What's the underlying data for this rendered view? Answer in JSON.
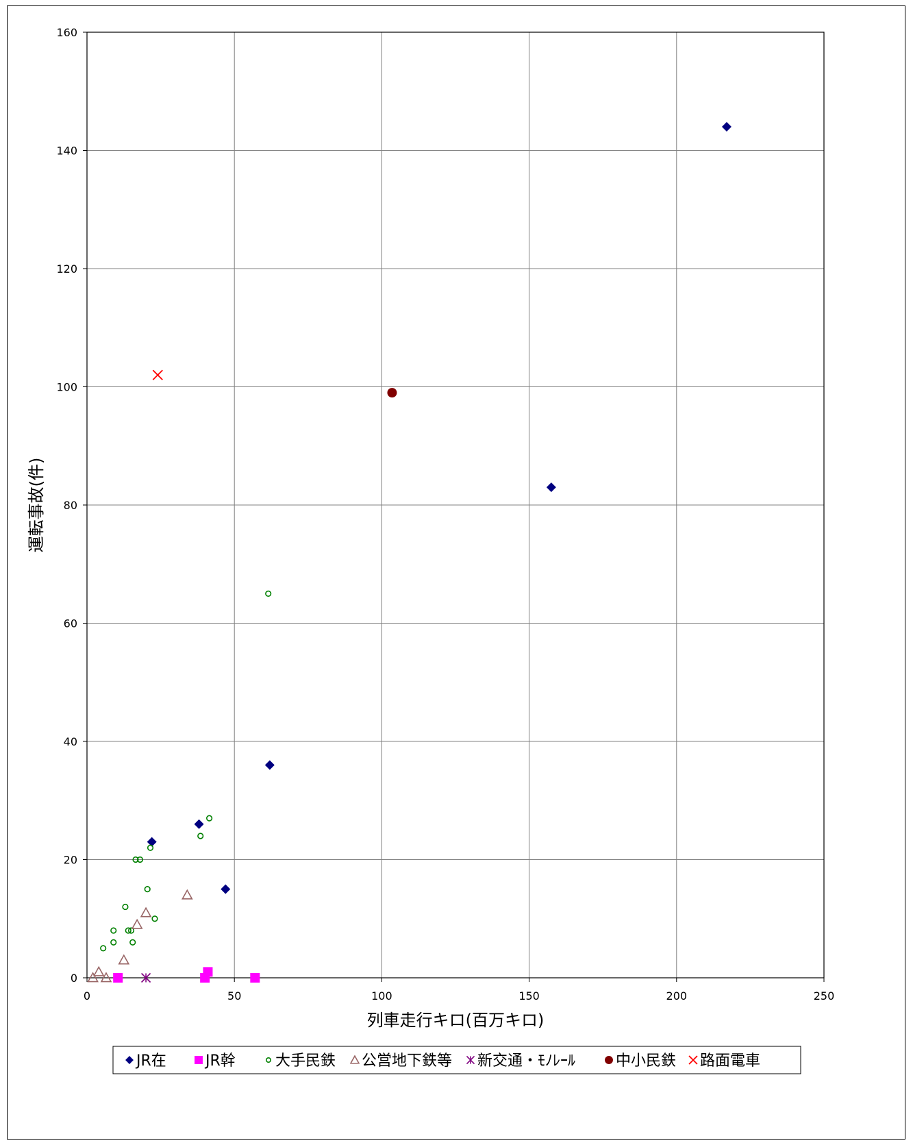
{
  "chart_data": {
    "type": "scatter",
    "title": "",
    "xlabel": "列車走行キロ(百万キロ)",
    "ylabel": "運転事故(件)",
    "xlim": [
      0,
      250
    ],
    "ylim": [
      0,
      160
    ],
    "xticks": [
      0,
      50,
      100,
      150,
      200,
      250
    ],
    "yticks": [
      0,
      20,
      40,
      60,
      80,
      100,
      120,
      140,
      160
    ],
    "grid": true,
    "legend_position": "bottom",
    "series": [
      {
        "name": "JR在",
        "marker": "diamond",
        "color": "#000080",
        "points": [
          [
            217,
            144
          ],
          [
            157.5,
            83
          ],
          [
            62,
            36
          ],
          [
            38,
            26
          ],
          [
            22,
            23
          ],
          [
            47,
            15
          ]
        ]
      },
      {
        "name": "JR幹",
        "marker": "square",
        "color": "#ff00ff",
        "points": [
          [
            10.5,
            0
          ],
          [
            41,
            1
          ],
          [
            40,
            0
          ],
          [
            57,
            0
          ]
        ]
      },
      {
        "name": "大手民鉄",
        "marker": "circle-open",
        "color": "#008000",
        "points": [
          [
            61.5,
            65
          ],
          [
            41.5,
            27
          ],
          [
            38.5,
            24
          ],
          [
            21.5,
            22
          ],
          [
            16.5,
            20
          ],
          [
            18,
            20
          ],
          [
            20.5,
            15
          ],
          [
            13,
            12
          ],
          [
            23,
            10
          ],
          [
            9,
            8
          ],
          [
            14,
            8
          ],
          [
            15,
            8
          ],
          [
            9,
            6
          ],
          [
            15.5,
            6
          ],
          [
            5.5,
            5
          ]
        ]
      },
      {
        "name": "公営地下鉄等",
        "marker": "triangle-open",
        "color": "#996666",
        "points": [
          [
            34,
            14
          ],
          [
            20,
            11
          ],
          [
            17,
            9
          ],
          [
            12.5,
            3
          ],
          [
            4,
            1
          ],
          [
            2,
            0
          ],
          [
            6.5,
            0
          ]
        ]
      },
      {
        "name": "新交通・モノレール",
        "marker": "star",
        "color": "#800080",
        "points": [
          [
            20,
            0
          ]
        ]
      },
      {
        "name": "中小民鉄",
        "marker": "circle",
        "color": "#800000",
        "points": [
          [
            103.5,
            99
          ]
        ]
      },
      {
        "name": "路面電車",
        "marker": "x",
        "color": "#ff0000",
        "points": [
          [
            24,
            102
          ]
        ]
      }
    ],
    "legend_labels": [
      "JR在",
      "JR幹",
      "大手民鉄",
      "公営地下鉄等",
      "新交通・ﾓﾉﾚｰﾙ",
      "中小民鉄",
      "路面電車"
    ]
  }
}
